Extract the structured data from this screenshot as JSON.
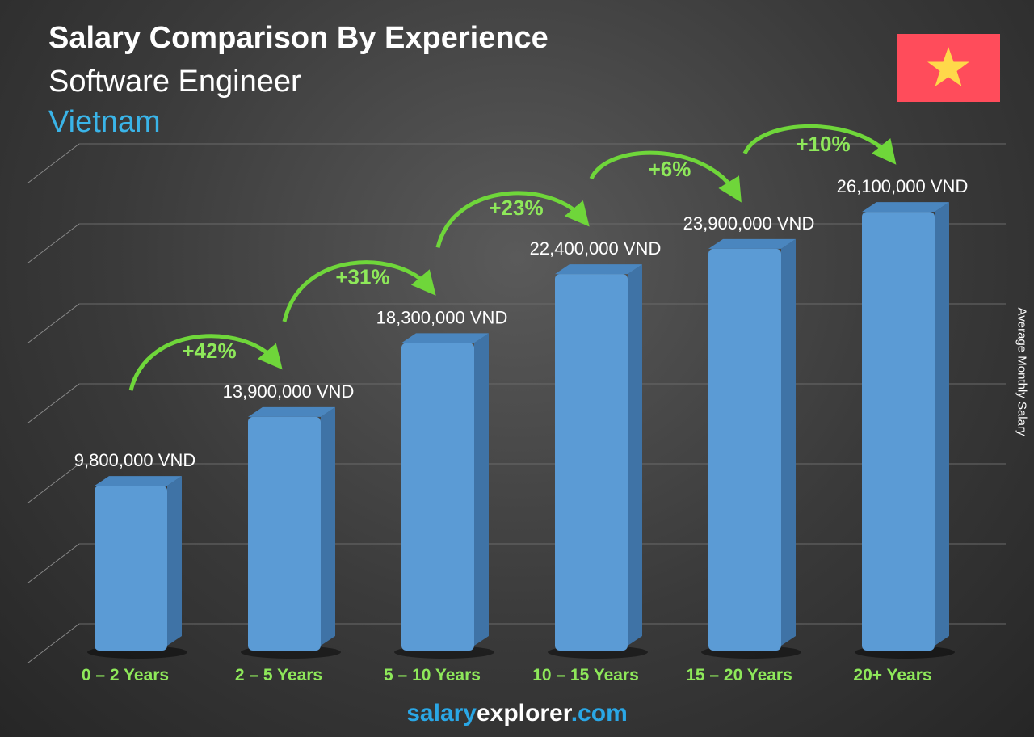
{
  "header": {
    "title": "Salary Comparison By Experience",
    "subtitle": "Software Engineer",
    "country": "Vietnam",
    "flag_icon": "vietnam-flag-icon"
  },
  "colors": {
    "bar": "#5b9bd5",
    "bar_side": "#3f73a6",
    "category_text": "#8ee85a",
    "percent_text": "#8ee85a",
    "arrow": "#6fd63a",
    "country": "#3ab4e8",
    "flag_red": "#ff4c5b",
    "flag_star": "#ffd84a"
  },
  "chart_data": {
    "type": "bar",
    "title": "Salary Comparison By Experience",
    "ylabel": "Average Monthly Salary",
    "categories": [
      "0 – 2 Years",
      "2 – 5 Years",
      "5 – 10 Years",
      "10 – 15 Years",
      "15 – 20 Years",
      "20+ Years"
    ],
    "values": [
      9800000,
      13900000,
      18300000,
      22400000,
      23900000,
      26100000
    ],
    "value_labels": [
      "9,800,000 VND",
      "13,900,000 VND",
      "18,300,000 VND",
      "22,400,000 VND",
      "23,900,000 VND",
      "26,100,000 VND"
    ],
    "changes": [
      "+42%",
      "+31%",
      "+23%",
      "+6%",
      "+10%"
    ],
    "unit": "VND",
    "ylim": [
      0,
      30000000
    ],
    "grid": true
  },
  "footer": {
    "part1": "salary",
    "part2": "explorer",
    "part3": ".com"
  }
}
